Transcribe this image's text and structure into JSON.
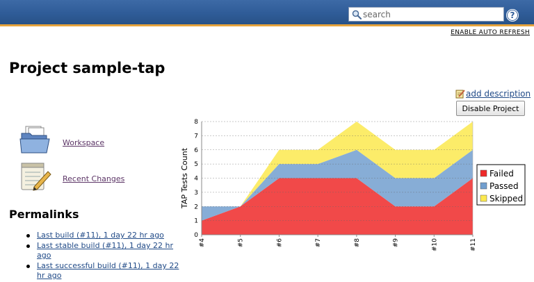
{
  "header": {
    "search_placeholder": "search",
    "help_icon": "question-mark-icon",
    "help_glyph": "?"
  },
  "auto_refresh": "ENABLE AUTO REFRESH",
  "page_title": "Project sample-tap",
  "add_description": "add description",
  "disable_project": "Disable Project",
  "tasks": [
    {
      "label": "Workspace",
      "icon": "folder-icon"
    },
    {
      "label": "Recent Changes",
      "icon": "notepad-pencil-icon"
    }
  ],
  "permalinks": {
    "heading": "Permalinks",
    "items": [
      "Last build (#11), 1 day 22 hr ago",
      "Last stable build (#11), 1 day 22 hr ago",
      "Last successful build (#11), 1 day 22 hr ago"
    ]
  },
  "chart_data": {
    "type": "area",
    "stacked": true,
    "categories": [
      "#4",
      "#5",
      "#6",
      "#7",
      "#8",
      "#9",
      "#10",
      "#11"
    ],
    "series": [
      {
        "name": "Failed",
        "color": "#ef2929",
        "values": [
          1,
          2,
          4,
          4,
          4,
          2,
          2,
          4
        ]
      },
      {
        "name": "Passed",
        "color": "#729fcf",
        "values": [
          1,
          0,
          1,
          1,
          2,
          2,
          2,
          2
        ]
      },
      {
        "name": "Skipped",
        "color": "#fce94f",
        "values": [
          0,
          0,
          1,
          1,
          2,
          2,
          2,
          2
        ]
      }
    ],
    "ylabel": "TAP Tests Count",
    "xlabel": "",
    "ylim": [
      0,
      8
    ],
    "yticks": [
      0,
      1,
      2,
      3,
      4,
      5,
      6,
      7,
      8
    ],
    "grid": true,
    "legend": "right"
  }
}
